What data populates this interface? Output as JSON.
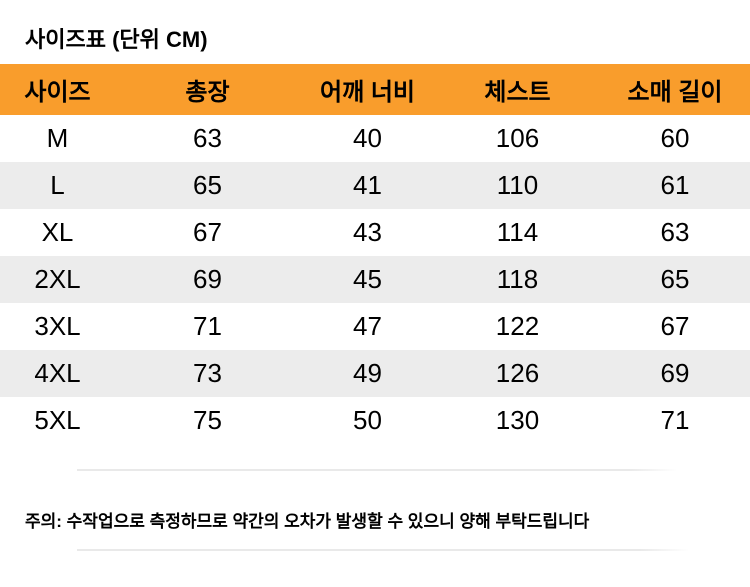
{
  "title": "사이즈표 (단위 CM)",
  "table": {
    "columns": [
      "사이즈",
      "총장",
      "어깨 너비",
      "체스트",
      "소매 길이"
    ],
    "rows": [
      [
        "M",
        "63",
        "40",
        "106",
        "60"
      ],
      [
        "L",
        "65",
        "41",
        "110",
        "61"
      ],
      [
        "XL",
        "67",
        "43",
        "114",
        "63"
      ],
      [
        "2XL",
        "69",
        "45",
        "118",
        "65"
      ],
      [
        "3XL",
        "71",
        "47",
        "122",
        "67"
      ],
      [
        "4XL",
        "73",
        "49",
        "126",
        "69"
      ],
      [
        "5XL",
        "75",
        "50",
        "130",
        "71"
      ]
    ]
  },
  "note": "주의: 수작업으로 측정하므로 약간의 오차가 발생할 수 있으니 양해 부탁드립니다",
  "colors": {
    "header_bg": "#F99D2C",
    "row_alt_bg": "#ECECEC",
    "text": "#000000",
    "divider": "#E9E9E9"
  }
}
